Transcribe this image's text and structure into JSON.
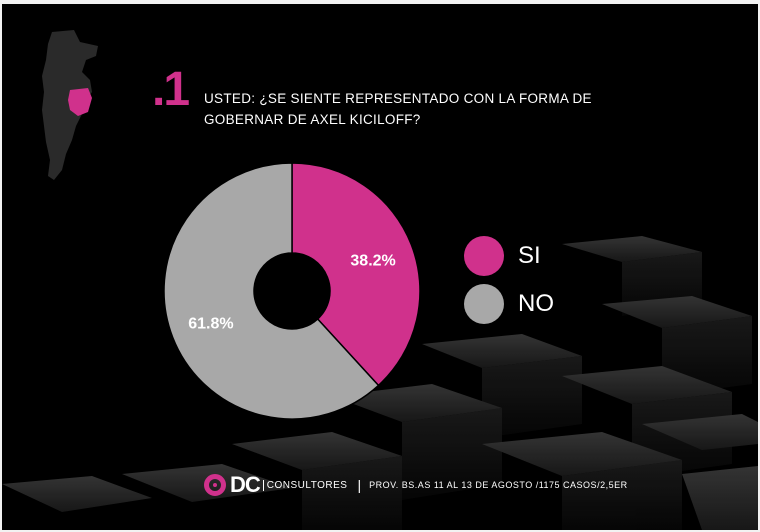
{
  "question": {
    "number": ".1",
    "text": "USTED: ¿SE SIENTE REPRESENTADO CON LA FORMA DE GOBERNAR DE AXEL KICILOFF?"
  },
  "colors": {
    "si": "#d0318c",
    "no": "#a8a8a8",
    "background": "#000000",
    "accent": "#d0318c"
  },
  "chart_data": {
    "type": "pie",
    "variant": "donut",
    "categories": [
      "SI",
      "NO"
    ],
    "values": [
      38.2,
      61.8
    ],
    "labels": [
      "38.2%",
      "61.8%"
    ],
    "title": "",
    "legend": "right"
  },
  "footer": {
    "logo_main": "DC",
    "logo_sub": "CONSULTORES",
    "separator": "|",
    "source": "PROV. BS.AS 11 AL 13 DE AGOSTO /1175 CASOS/2,5ER"
  }
}
